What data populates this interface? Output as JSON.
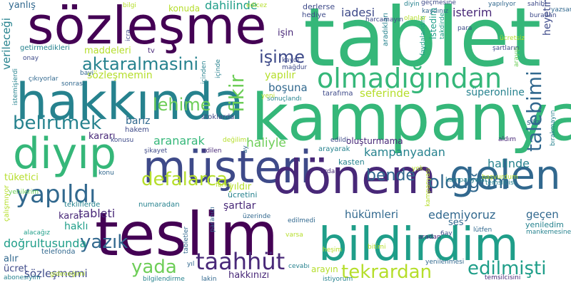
{
  "background": "#ffffff",
  "palette": {
    "purple": "#440154",
    "indigo": "#482878",
    "blue": "#3e4a89",
    "slate": "#31688e",
    "teal": "#26828e",
    "sea": "#1f9e89",
    "green": "#35b779",
    "lime": "#6ece58",
    "yellowgreen": "#b5de2b",
    "yellow": "#c8d632"
  },
  "words": [
    {
      "id": "tablet",
      "text": "tablet",
      "color": "#35b779"
    },
    {
      "id": "kampanya",
      "text": "kampanya",
      "color": "#35b779"
    },
    {
      "id": "sozlesme",
      "text": "sözleşme",
      "color": "#440154"
    },
    {
      "id": "hakkinda",
      "text": "hakkında",
      "color": "#26828e"
    },
    {
      "id": "teslim",
      "text": "teslim",
      "color": "#440154"
    },
    {
      "id": "diyip",
      "text": "diyip",
      "color": "#35b779"
    },
    {
      "id": "musteri",
      "text": "müşteri",
      "color": "#3e4a89"
    },
    {
      "id": "donem",
      "text": "dönem",
      "color": "#482878"
    },
    {
      "id": "bildirdim",
      "text": "bildirdim",
      "color": "#1f9e89"
    },
    {
      "id": "gelen",
      "text": "gelen",
      "color": "#31688e"
    },
    {
      "id": "olmadigindan",
      "text": "olmadığından",
      "color": "#35b779"
    },
    {
      "id": "yapildi",
      "text": "yapıldı",
      "color": "#31688e"
    },
    {
      "id": "taahhut",
      "text": "taahhüt",
      "color": "#482878"
    },
    {
      "id": "aktaralmasini",
      "text": "aktaralmasini",
      "color": "#26828e"
    },
    {
      "id": "belirtmek",
      "text": "belirtmek",
      "color": "#26828e"
    },
    {
      "id": "defalarca",
      "text": "defalarca",
      "color": "#b5de2b"
    },
    {
      "id": "tekrardan",
      "text": "tekrardan",
      "color": "#b5de2b"
    },
    {
      "id": "edilmisti",
      "text": "edilmişti",
      "color": "#1f9e89"
    },
    {
      "id": "talebimi",
      "text": "talebimi",
      "color": "#31688e"
    },
    {
      "id": "oldugum",
      "text": "olduğum",
      "color": "#31688e"
    },
    {
      "id": "lehime",
      "text": "lehime",
      "color": "#6ece58"
    },
    {
      "id": "fikir",
      "text": "fikir",
      "color": "#6ece58"
    },
    {
      "id": "isime",
      "text": "işime",
      "color": "#3e4a89"
    },
    {
      "id": "yazik",
      "text": "yazık",
      "color": "#31688e"
    },
    {
      "id": "yada",
      "text": "yada",
      "color": "#6ece58"
    },
    {
      "id": "bende",
      "text": "bende",
      "color": "#31688e"
    },
    {
      "id": "hukumleri",
      "text": "hükümleri",
      "color": "#31688e"
    },
    {
      "id": "edemiyoruz",
      "text": "edemiyoruz",
      "color": "#31688e"
    },
    {
      "id": "aranarak",
      "text": "aranarak",
      "color": "#35b779"
    },
    {
      "id": "tableti",
      "text": "tableti",
      "color": "#482878"
    },
    {
      "id": "haliyle",
      "text": "haliyle",
      "color": "#6ece58"
    },
    {
      "id": "dogrultusunda",
      "text": "doğrultusunda",
      "color": "#1f9e89"
    },
    {
      "id": "sozlesmemi",
      "text": "sözleşmemi",
      "color": "#3e4a89"
    },
    {
      "id": "kampanyadan",
      "text": "kampanyadan",
      "color": "#26828e"
    },
    {
      "id": "halinde",
      "text": "halinde",
      "color": "#26828e"
    },
    {
      "id": "dahilinde",
      "text": "dahilinde",
      "color": "#1f9e89"
    },
    {
      "id": "iadesi",
      "text": "iadesi",
      "color": "#3e4a89"
    },
    {
      "id": "isterim",
      "text": "isterim",
      "color": "#482878"
    },
    {
      "id": "superonline",
      "text": "süperonline",
      "color": "#26828e"
    },
    {
      "id": "seferinde",
      "text": "seferinde",
      "color": "#b5de2b"
    },
    {
      "id": "bosuna",
      "text": "boşuna",
      "color": "#31688e"
    },
    {
      "id": "yapilir",
      "text": "yapılır",
      "color": "#b5de2b"
    },
    {
      "id": "sozlesmemin",
      "text": "sözleşmemin",
      "color": "#b5de2b"
    },
    {
      "id": "maddeleri",
      "text": "maddeleri",
      "color": "#b5de2b"
    },
    {
      "id": "konuda",
      "text": "konuda",
      "color": "#b5de2b"
    },
    {
      "id": "yanlis",
      "text": "yanlış",
      "color": "#31688e"
    },
    {
      "id": "verilecegi",
      "text": "verileceği",
      "color": "#26828e"
    },
    {
      "id": "getirmedikleri",
      "text": "getirmedikleri",
      "color": "#26828e"
    },
    {
      "id": "tv",
      "text": "tv",
      "color": "#482878"
    },
    {
      "id": "hediye",
      "text": "hediye",
      "color": "#3e4a89"
    },
    {
      "id": "derlerse",
      "text": "derlerse",
      "color": "#3e4a89"
    },
    {
      "id": "isin",
      "text": "işin",
      "color": "#482878"
    },
    {
      "id": "bariz",
      "text": "bariz",
      "color": "#31688e"
    },
    {
      "id": "hakem",
      "text": "hakem",
      "color": "#3e4a89"
    },
    {
      "id": "karari",
      "text": "kararı",
      "color": "#482878"
    },
    {
      "id": "stoklarda",
      "text": "stoklarda",
      "color": "#3e4a89"
    },
    {
      "id": "tuketici",
      "text": "tüketici",
      "color": "#b5de2b"
    },
    {
      "id": "kasten",
      "text": "kasten",
      "color": "#26828e"
    },
    {
      "id": "olusturmama",
      "text": "oluşturmama",
      "color": "#482878"
    },
    {
      "id": "arayarak",
      "text": "arayarak",
      "color": "#26828e"
    },
    {
      "id": "edildi",
      "text": "edildi",
      "color": "#3e4a89"
    },
    {
      "id": "ucretini",
      "text": "ücretini",
      "color": "#26828e"
    },
    {
      "id": "yildir",
      "text": "yıldır",
      "color": "#b5de2b"
    },
    {
      "id": "sartlar",
      "text": "şartlar",
      "color": "#482878"
    },
    {
      "id": "karar",
      "text": "karar",
      "color": "#482878"
    },
    {
      "id": "hakli",
      "text": "haklı",
      "color": "#1f9e89"
    },
    {
      "id": "alir",
      "text": "alır",
      "color": "#31688e"
    },
    {
      "id": "ucret",
      "text": "ücret",
      "color": "#3e4a89"
    },
    {
      "id": "hakkinizi",
      "text": "hakkınızı",
      "color": "#482878"
    },
    {
      "id": "arayin",
      "text": "arayın",
      "color": "#b5de2b"
    },
    {
      "id": "gecen",
      "text": "geçen",
      "color": "#31688e"
    },
    {
      "id": "yeniledim",
      "text": "yeniledim",
      "color": "#26828e"
    },
    {
      "id": "heyetine",
      "text": "heyetine",
      "color": "#3e4a89"
    },
    {
      "id": "istedim",
      "text": "istedim",
      "color": "#1f9e89"
    },
    {
      "id": "aradiklari",
      "text": "aradıkları",
      "color": "#26828e"
    },
    {
      "id": "faydalandim",
      "text": "faydalandım",
      "color": "#1f9e89"
    },
    {
      "id": "takdirde",
      "text": "takdirde",
      "color": "#1f9e89"
    },
    {
      "id": "tarafima",
      "text": "tarafıma",
      "color": "#3e4a89"
    },
    {
      "id": "soz",
      "text": "söz",
      "color": "#31688e"
    },
    {
      "id": "kampanyalar",
      "text": "kampanyalar",
      "color": "#26828e"
    },
    {
      "id": "numaradan",
      "text": "numaradan",
      "color": "#26828e"
    },
    {
      "id": "tekliflerde",
      "text": "tekliflerde",
      "color": "#26828e"
    },
    {
      "id": "telefonda",
      "text": "telefonda",
      "color": "#31688e"
    },
    {
      "id": "calismiyor",
      "text": "çalışmıyor",
      "color": "#b5de2b"
    },
    {
      "id": "yenilerim",
      "text": "yenilerim",
      "color": "#6ece58"
    },
    {
      "id": "alacagiz",
      "text": "alacağız",
      "color": "#1f9e89"
    },
    {
      "id": "abonesiyim",
      "text": "abonesiyim",
      "color": "#26828e"
    },
    {
      "id": "bilgilendirme",
      "text": "bilgilendirme",
      "color": "#26828e"
    },
    {
      "id": "lakin",
      "text": "lakin",
      "color": "#31688e"
    },
    {
      "id": "istiyorum",
      "text": "istiyorum",
      "color": "#26828e"
    },
    {
      "id": "tabletler",
      "text": "tabletler",
      "color": "#31688e"
    },
    {
      "id": "paranizi",
      "text": "paranızı",
      "color": "#31688e"
    },
    {
      "id": "uzerinde",
      "text": "üzerinde",
      "color": "#31688e"
    },
    {
      "id": "yil",
      "text": "yıl",
      "color": "#31688e"
    },
    {
      "id": "gidecegimi",
      "text": "gideceğimi",
      "color": "#b5de2b"
    },
    {
      "id": "edilmedi",
      "text": "edilmedi",
      "color": "#31688e"
    },
    {
      "id": "cevabi",
      "text": "cevabı",
      "color": "#26828e"
    },
    {
      "id": "bitimi",
      "text": "bitimi",
      "color": "#b5de2b"
    },
    {
      "id": "aradan",
      "text": "aradan",
      "color": "#482878"
    },
    {
      "id": "ses",
      "text": "ses",
      "color": "#31688e"
    },
    {
      "id": "lutfen",
      "text": "lütfen",
      "color": "#31688e"
    },
    {
      "id": "temsilcisini",
      "text": "temsilcisini",
      "color": "#482878"
    },
    {
      "id": "yenilenmesi",
      "text": "yenilenmesi",
      "color": "#31688e"
    },
    {
      "id": "6ay",
      "text": "6ay",
      "color": "#3e4a89"
    },
    {
      "id": "mankemesine",
      "text": "mankemesine",
      "color": "#26828e"
    },
    {
      "id": "birakmayin",
      "text": "bırakmayın",
      "color": "#26828e"
    },
    {
      "id": "basvurdum",
      "text": "başvurdum",
      "color": "#b5de2b"
    },
    {
      "id": "temsilcisi",
      "text": "temsilcisi",
      "color": "#26828e"
    },
    {
      "id": "aldim",
      "text": "aldım",
      "color": "#482878"
    },
    {
      "id": "sonuclandi",
      "text": "sonuçlandı",
      "color": "#26828e"
    },
    {
      "id": "yeni",
      "text": "yeni",
      "color": "#b5de2b"
    },
    {
      "id": "sikayet",
      "text": "şikayet",
      "color": "#3e4a89"
    },
    {
      "id": "edilen",
      "text": "edilen",
      "color": "#482878"
    },
    {
      "id": "konusu",
      "text": "konusu",
      "color": "#3e4a89"
    },
    {
      "id": "degilim",
      "text": "değilim",
      "color": "#b5de2b"
    },
    {
      "id": "ay",
      "text": "ay",
      "color": "#31688e"
    },
    {
      "id": "orda",
      "text": "orda",
      "color": "#482878"
    },
    {
      "id": "konu",
      "text": "konu",
      "color": "#31688e"
    },
    {
      "id": "farkli",
      "text": "farklı",
      "color": "#b5de2b"
    },
    {
      "id": "yok",
      "text": "yok",
      "color": "#b5de2b"
    },
    {
      "id": "kampanyasi",
      "text": "kampanyası",
      "color": "#b5de2b"
    },
    {
      "id": "varsa",
      "text": "varsa",
      "color": "#b5de2b"
    },
    {
      "id": "hesim",
      "text": "heşim",
      "color": "#b5de2b"
    },
    {
      "id": "bilgi",
      "text": "bilgi",
      "color": "#b5de2b"
    },
    {
      "id": "edicez",
      "text": "edicez",
      "color": "#b5de2b"
    },
    {
      "id": "diyin",
      "text": "diyin",
      "color": "#26828e"
    },
    {
      "id": "gecmesine",
      "text": "geçmesine",
      "color": "#3e4a89"
    },
    {
      "id": "yapiliyor",
      "text": "yapılıyor",
      "color": "#31688e"
    },
    {
      "id": "sahibi",
      "text": "sahibi",
      "color": "#3e4a89"
    },
    {
      "id": "buradan",
      "text": "buradan",
      "color": "#3e4a89"
    },
    {
      "id": "kaydiniz",
      "text": "kaydınız",
      "color": "#31688e"
    },
    {
      "id": "yazsam",
      "text": "yazsam",
      "color": "#31688e"
    },
    {
      "id": "olanlar",
      "text": "olanlar",
      "color": "#b5de2b"
    },
    {
      "id": "para",
      "text": "para",
      "color": "#3e4a89"
    },
    {
      "id": "sartlarin",
      "text": "şartların",
      "color": "#3e4a89"
    },
    {
      "id": "arayip",
      "text": "arayıp",
      "color": "#6ece58"
    },
    {
      "id": "harcamayin",
      "text": "harcamayın",
      "color": "#3e4a89"
    },
    {
      "id": "kaydi",
      "text": "kaydı",
      "color": "#3e4a89"
    },
    {
      "id": "magdur",
      "text": "mağdur",
      "color": "#3e4a89"
    },
    {
      "id": "icra",
      "text": "icra",
      "color": "#3e4a89"
    },
    {
      "id": "onay",
      "text": "onay",
      "color": "#3e4a89"
    },
    {
      "id": "bayi",
      "text": "bayi",
      "color": "#31688e"
    },
    {
      "id": "cikiyorlar",
      "text": "çıkıyorlar",
      "color": "#31688e"
    },
    {
      "id": "sonrasi",
      "text": "sonrası",
      "color": "#31688e"
    },
    {
      "id": "istemisierdi",
      "text": "istemişierdi",
      "color": "#26828e"
    },
    {
      "id": "icinden",
      "text": "içinden",
      "color": "#26828e"
    },
    {
      "id": "icinde",
      "text": "içinde",
      "color": "#26828e"
    },
    {
      "id": "ucretsiz",
      "text": "ücretsiz",
      "color": "#b5de2b"
    }
  ]
}
